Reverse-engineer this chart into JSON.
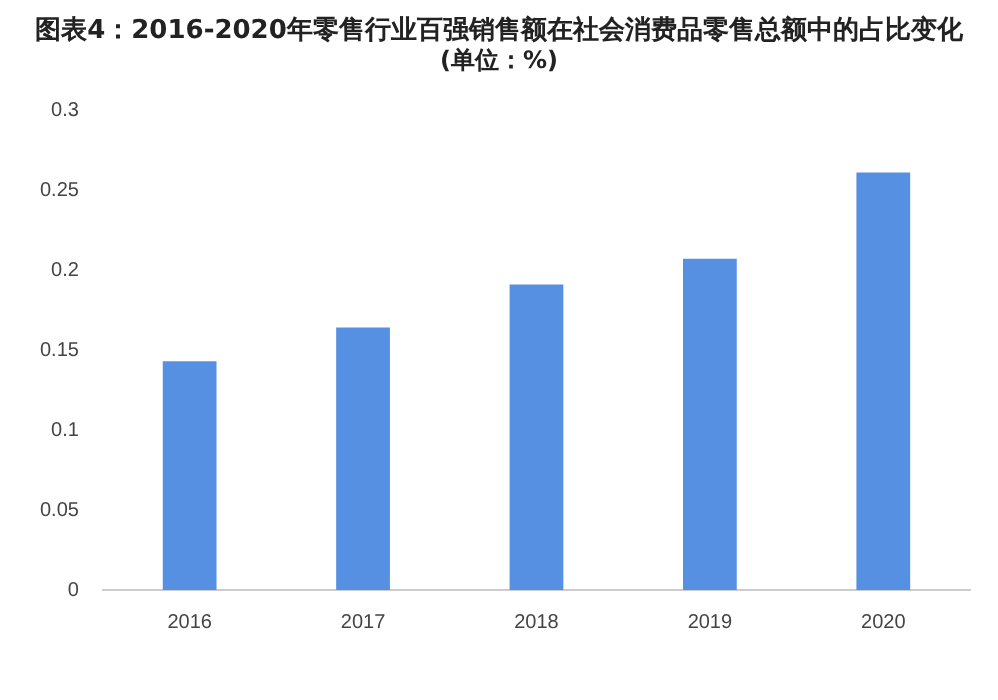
{
  "chart_data": {
    "type": "bar",
    "title": "图表4：2016-2020年零售行业百强销售额在社会消费品零售总额中的占比变化",
    "subtitle": "(单位：%)",
    "categories": [
      "2016",
      "2017",
      "2018",
      "2019",
      "2020"
    ],
    "values": [
      0.143,
      0.164,
      0.191,
      0.207,
      0.261
    ],
    "color": "#5590e3",
    "ylim": [
      0,
      0.3
    ],
    "yticks": [
      0,
      0.05,
      0.1,
      0.15,
      0.2,
      0.25,
      0.3
    ],
    "grid": false,
    "legend": false
  }
}
